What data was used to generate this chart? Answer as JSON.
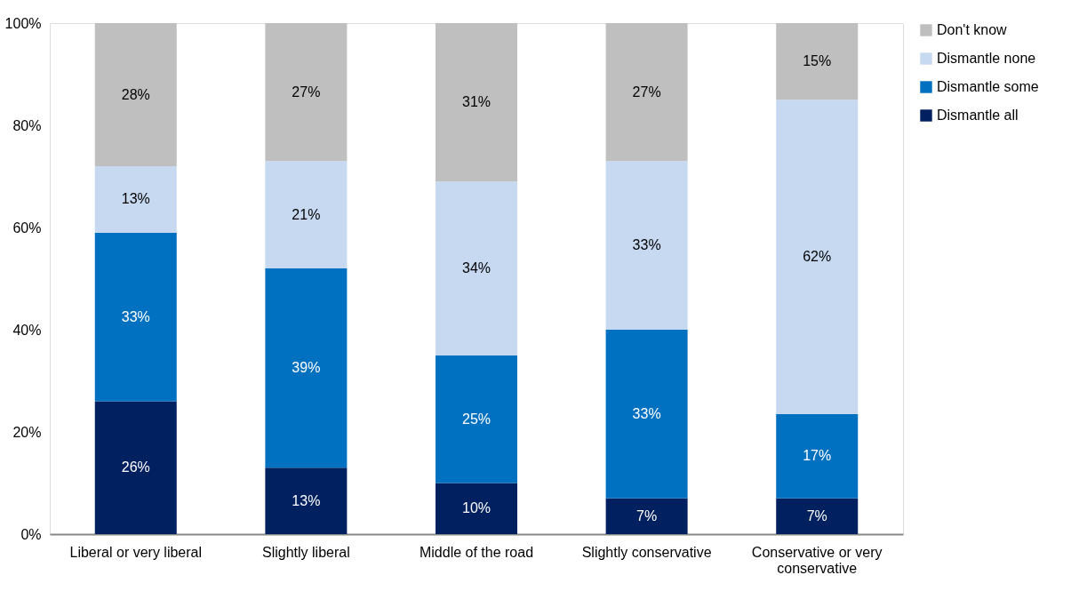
{
  "chart_data": {
    "type": "bar",
    "stacked": true,
    "categories": [
      "Liberal or very liberal",
      "Slightly liberal",
      "Middle of the road",
      "Slightly conservative",
      "Conservative or very conservative"
    ],
    "series": [
      {
        "name": "Dismantle all",
        "color": "#002060",
        "values": [
          26,
          13,
          10,
          7,
          7
        ],
        "value_labels": [
          "26%",
          "13%",
          "10%",
          "7%",
          "7%"
        ]
      },
      {
        "name": "Dismantle some",
        "color": "#0070c0",
        "values": [
          33,
          39,
          25,
          33,
          16.5
        ],
        "value_labels": [
          "33%",
          "39%",
          "25%",
          "33%",
          "17%"
        ]
      },
      {
        "name": "Dismantle none",
        "color": "#c6d9f1",
        "values": [
          13,
          21,
          34,
          33,
          61.5
        ],
        "value_labels": [
          "13%",
          "21%",
          "34%",
          "33%",
          "62%"
        ]
      },
      {
        "name": "Don't know",
        "color": "#bfbfbf",
        "values": [
          28,
          27,
          31,
          27,
          15
        ],
        "value_labels": [
          "28%",
          "27%",
          "31%",
          "27%",
          "15%"
        ]
      }
    ],
    "ylim": [
      0,
      100
    ],
    "yticks": [
      {
        "value": 0,
        "label": "0%"
      },
      {
        "value": 20,
        "label": "20%"
      },
      {
        "value": 40,
        "label": "40%"
      },
      {
        "value": 60,
        "label": "60%"
      },
      {
        "value": 80,
        "label": "80%"
      },
      {
        "value": 100,
        "label": "100%"
      }
    ],
    "grid": false,
    "legend": "right"
  }
}
